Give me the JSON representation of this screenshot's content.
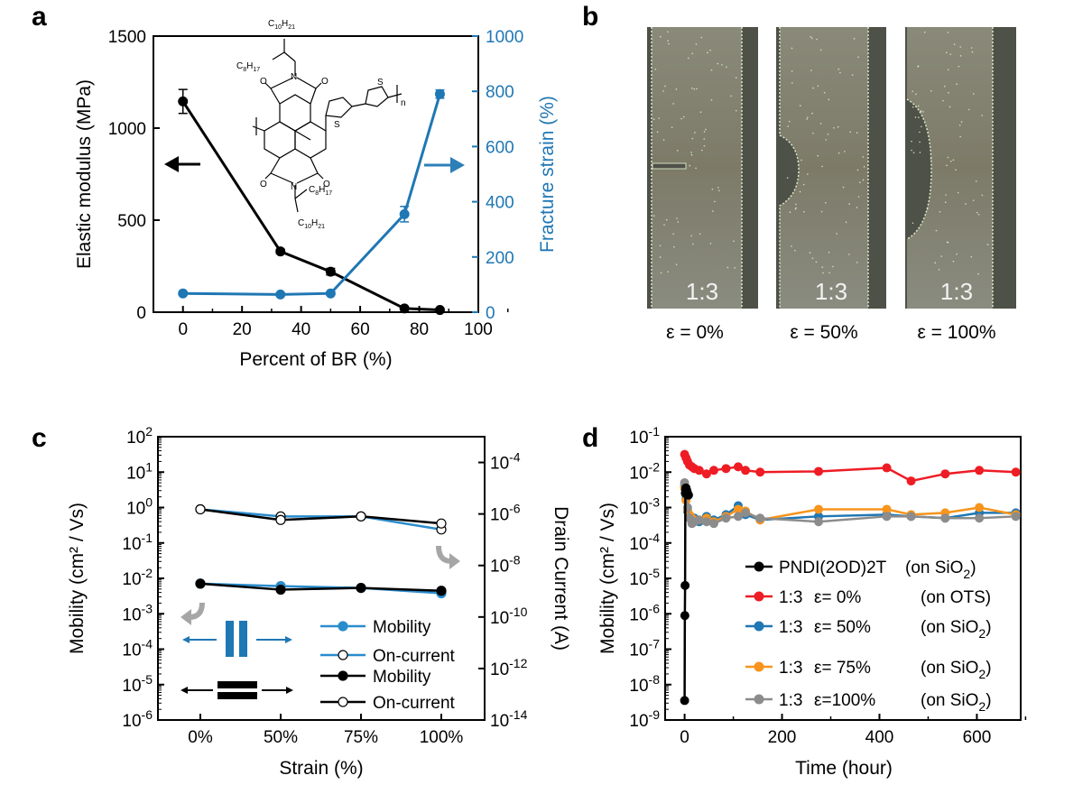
{
  "panels": {
    "a": "a",
    "b": "b",
    "c": "c",
    "d": "d"
  },
  "colors": {
    "black": "#000000",
    "blue": "#1f77b4",
    "blue_light": "#2a8ccc",
    "red": "#ee1c24",
    "orange": "#f7941d",
    "gray": "#8c8c8c",
    "arrow_gray": "#a6a6a6"
  },
  "panel_a": {
    "chemical": {
      "substituents": [
        "C10H21",
        "C8H17",
        "C8H17",
        "C10H21"
      ],
      "atoms": [
        "O",
        "O",
        "O",
        "O",
        "N",
        "N",
        "S",
        "S",
        "n"
      ]
    }
  },
  "panel_b": {
    "photo_label": "1:3",
    "captions": [
      "ε = 0%",
      "ε = 50%",
      "ε = 100%"
    ]
  },
  "panel_c": {
    "legend_title_lines": [
      "Mobility",
      "On-current",
      "Mobility",
      "On-current"
    ]
  },
  "chart_data": [
    {
      "id": "a",
      "type": "line",
      "xlabel": "Percent of BR (%)",
      "ylabel": "Elastic modulus (MPa)",
      "y2label": "Fracture strain (%)",
      "xlim": [
        -10,
        100
      ],
      "ylim": [
        0,
        1500
      ],
      "y2lim": [
        0,
        1000
      ],
      "xticks": [
        "0",
        "20",
        "40",
        "60",
        "80",
        "100"
      ],
      "yticks": [
        "0",
        "500",
        "1000",
        "1500"
      ],
      "y2ticks": [
        "0",
        "200",
        "400",
        "600",
        "800",
        "1000"
      ],
      "series": [
        {
          "name": "Elastic modulus",
          "axis": "left",
          "color": "#000000",
          "x": [
            0,
            33,
            50,
            75,
            87
          ],
          "values": [
            1145,
            330,
            220,
            20,
            12
          ],
          "err": [
            65,
            12,
            18,
            6,
            5
          ]
        },
        {
          "name": "Fracture strain",
          "axis": "right",
          "color": "#1f77b4",
          "x": [
            0,
            33,
            50,
            75,
            87
          ],
          "values": [
            68,
            64,
            68,
            355,
            790
          ],
          "err": [
            5,
            4,
            5,
            28,
            15
          ]
        }
      ]
    },
    {
      "id": "c",
      "type": "line",
      "xlabel": "Strain (%)",
      "ylabel": "Mobility (cm² / Vs)",
      "y2label": "Drain Current (A)",
      "categories": [
        "0%",
        "50%",
        "75%",
        "100%"
      ],
      "ylim": [
        -6,
        2
      ],
      "y2lim": [
        -14,
        -3
      ],
      "yticks": [
        {
          "b": "10",
          "e": "2"
        },
        {
          "b": "10",
          "e": "1"
        },
        {
          "b": "10",
          "e": "0"
        },
        {
          "b": "10",
          "e": "-1"
        },
        {
          "b": "10",
          "e": "-2"
        },
        {
          "b": "10",
          "e": "-3"
        },
        {
          "b": "10",
          "e": "-4"
        },
        {
          "b": "10",
          "e": "-5"
        },
        {
          "b": "10",
          "e": "-6"
        }
      ],
      "y2ticks": [
        {
          "b": "10",
          "e": "-4"
        },
        {
          "b": "10",
          "e": "-6"
        },
        {
          "b": "10",
          "e": "-8"
        },
        {
          "b": "10",
          "e": "-10"
        },
        {
          "b": "10",
          "e": "-12"
        },
        {
          "b": "10",
          "e": "-14"
        }
      ],
      "series": [
        {
          "name": "Mobility",
          "orientation": "parallel",
          "color": "#2a8ccc",
          "marker": "filled",
          "values_log10": [
            -2.15,
            -2.22,
            -2.27,
            -2.42
          ]
        },
        {
          "name": "On-current",
          "orientation": "parallel",
          "color": "#2a8ccc",
          "marker": "open",
          "values_log10": [
            -0.05,
            -0.25,
            -0.25,
            -0.62
          ]
        },
        {
          "name": "Mobility",
          "orientation": "perpendicular",
          "color": "#000000",
          "marker": "filled",
          "values_log10": [
            -2.15,
            -2.32,
            -2.27,
            -2.35
          ]
        },
        {
          "name": "On-current",
          "orientation": "perpendicular",
          "color": "#000000",
          "marker": "open",
          "values_log10": [
            -0.05,
            -0.35,
            -0.25,
            -0.45
          ]
        }
      ]
    },
    {
      "id": "d",
      "type": "line",
      "xlabel": "Time (hour)",
      "ylabel": "Mobility (cm² / Vs)",
      "xlim": [
        -40,
        690
      ],
      "ylim": [
        -9,
        -1
      ],
      "xticks": [
        "0",
        "200",
        "400",
        "600"
      ],
      "yticks": [
        {
          "b": "10",
          "e": "-1"
        },
        {
          "b": "10",
          "e": "-2"
        },
        {
          "b": "10",
          "e": "-3"
        },
        {
          "b": "10",
          "e": "-4"
        },
        {
          "b": "10",
          "e": "-5"
        },
        {
          "b": "10",
          "e": "-6"
        },
        {
          "b": "10",
          "e": "-7"
        },
        {
          "b": "10",
          "e": "-8"
        },
        {
          "b": "10",
          "e": "-9"
        }
      ],
      "series": [
        {
          "name": "PNDI(2OD)2T",
          "strain": "",
          "substrate": "(on SiO",
          "sub": "2",
          "close": ")",
          "color": "#000000",
          "x": [
            0,
            0.5,
            1,
            1.5,
            2,
            2.5,
            3,
            4,
            5,
            6,
            8
          ],
          "values_log10": [
            -8.45,
            -6.05,
            -5.2,
            -2.6,
            -2.5,
            -2.45,
            -2.45,
            -2.5,
            -2.55,
            -2.6,
            -2.65
          ]
        },
        {
          "name": "1:3",
          "strain": "ε=   0%",
          "substrate": "(on OTS)",
          "sub": "",
          "close": "",
          "color": "#ee1c24",
          "x": [
            0,
            3,
            6,
            10,
            15,
            20,
            30,
            45,
            60,
            85,
            110,
            125,
            155,
            275,
            415,
            465,
            535,
            605,
            680
          ],
          "values_log10": [
            -1.5,
            -1.6,
            -1.7,
            -1.8,
            -1.85,
            -1.9,
            -1.95,
            -2.05,
            -1.95,
            -1.9,
            -1.85,
            -1.95,
            -2.0,
            -1.98,
            -1.88,
            -2.25,
            -2.05,
            -1.95,
            -2.0
          ]
        },
        {
          "name": "1:3",
          "strain": "ε=  50%",
          "substrate": "(on SiO",
          "sub": "2",
          "close": ")",
          "color": "#1f77b4",
          "x": [
            0,
            3,
            6,
            10,
            15,
            20,
            30,
            45,
            60,
            85,
            110,
            125,
            155,
            275,
            415,
            465,
            535,
            605,
            680
          ],
          "values_log10": [
            -2.4,
            -2.75,
            -3.1,
            -3.25,
            -3.35,
            -3.3,
            -3.4,
            -3.25,
            -3.35,
            -3.2,
            -2.95,
            -3.2,
            -3.35,
            -3.25,
            -3.2,
            -3.25,
            -3.3,
            -3.15,
            -3.15
          ]
        },
        {
          "name": "1:3",
          "strain": "ε=  75%",
          "substrate": "(on SiO",
          "sub": "2",
          "close": ")",
          "color": "#f7941d",
          "x": [
            0,
            3,
            6,
            10,
            15,
            20,
            30,
            45,
            60,
            85,
            110,
            125,
            155,
            275,
            415,
            465,
            535,
            605,
            680
          ],
          "values_log10": [
            -2.45,
            -2.8,
            -3.05,
            -3.2,
            -3.3,
            -3.35,
            -3.35,
            -3.3,
            -3.4,
            -3.25,
            -3.05,
            -3.1,
            -3.35,
            -3.05,
            -3.05,
            -3.2,
            -3.15,
            -3.0,
            -3.2
          ]
        },
        {
          "name": "1:3",
          "strain": "ε=100%",
          "substrate": "(on SiO",
          "sub": "2",
          "close": ")",
          "color": "#8c8c8c",
          "x": [
            0,
            3,
            6,
            10,
            15,
            20,
            30,
            45,
            60,
            85,
            110,
            125,
            155,
            275,
            415,
            465,
            535,
            605,
            680
          ],
          "values_log10": [
            -2.3,
            -2.6,
            -3.0,
            -3.3,
            -3.45,
            -3.4,
            -3.35,
            -3.4,
            -3.45,
            -3.3,
            -3.25,
            -3.15,
            -3.3,
            -3.4,
            -3.25,
            -3.25,
            -3.3,
            -3.3,
            -3.25
          ]
        }
      ]
    }
  ]
}
